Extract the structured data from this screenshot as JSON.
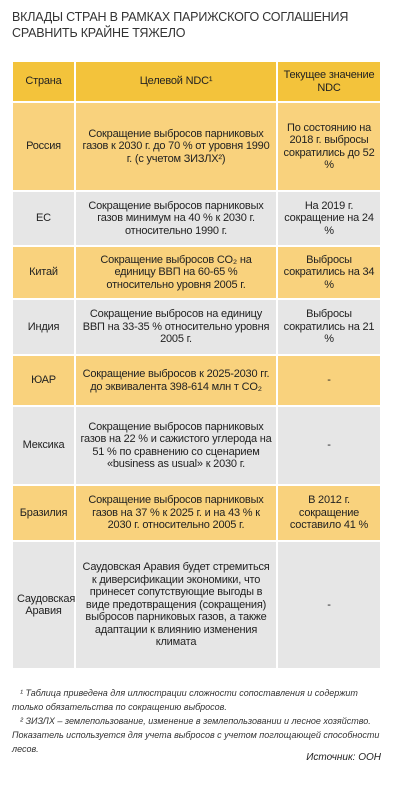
{
  "header": {
    "title": "ВКЛАДЫ СТРАН В РАМКАХ ПАРИЖСКОГО СОГЛАШЕНИЯ СРАВНИТЬ КРАЙНЕ ТЯЖЕЛО"
  },
  "table": {
    "columns": [
      "Страна",
      "Целевой NDC¹",
      "Текущее значение NDC"
    ],
    "rows": [
      [
        "Россия",
        "Сокращение выбросов парниковых газов к 2030 г. до 70 % от уровня 1990 г. (с учетом ЗИЗЛХ²)",
        "По состоянию на 2018 г. выбросы сократились до 52 %"
      ],
      [
        "ЕС",
        "Сокращение выбросов парниковых газов минимум на 40 % к 2030 г. относительно 1990 г.",
        "На 2019 г. сокращение на 24 %"
      ],
      [
        "Китай",
        "Сокращение выбросов CO₂ на единицу ВВП на 60-65 % относительно уровня 2005 г.",
        "Выбросы сократились на 34 %"
      ],
      [
        "Индия",
        "Сокращение выбросов на единицу ВВП на 33-35 % относительно уровня 2005 г.",
        "Выбросы сократились на 21 %"
      ],
      [
        "ЮАР",
        "Сокращение выбросов к 2025-2030 гг. до эквивалента 398-614 млн т CO₂",
        "-"
      ],
      [
        "Мексика",
        "Сокращение выбросов парниковых газов на 22 % и сажистого углерода на 51 % по сравнению со сценарием «business as usual» к 2030 г.",
        "-"
      ],
      [
        "Бразилия",
        "Сокращение выбросов парниковых газов на 37 % к 2025 г. и на 43 % к 2030 г. относительно 2005 г.",
        "В 2012 г. сокращение составило 41 %"
      ],
      [
        "Саудовская Аравия",
        "Саудовская Аравия будет стремиться к диверсификации экономики, что принесет сопутствующие выгоды в виде предотвращения (сокращения) выбросов парниковых газов, а также адаптации к влиянию изменения климата",
        "-"
      ]
    ]
  },
  "footnotes": [
    "¹ Таблица приведена для иллюстрации сложности сопоставления и содержит только обязательства по сокращению выбросов.",
    "² ЗИЗЛХ – землепользование, изменение в землепользовании и лесное хозяйство. Показатель используется для учета выбросов с учетом поглощающей способности лесов."
  ],
  "source": "Источник: ООН"
}
